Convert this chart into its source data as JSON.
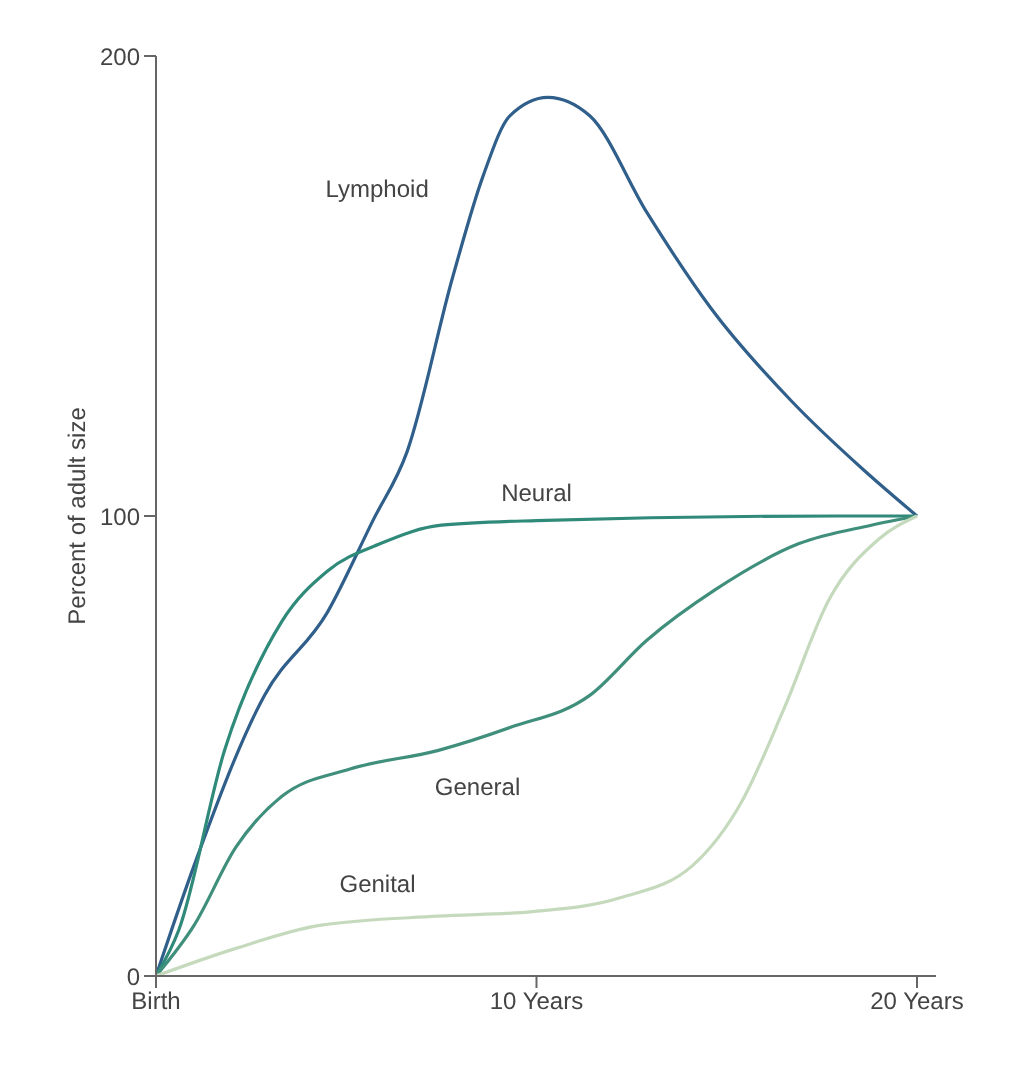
{
  "chart_data": {
    "type": "line",
    "ylabel": "Percent of adult size",
    "xlim": [
      0,
      20.5
    ],
    "ylim": [
      0,
      200
    ],
    "xticks": [
      {
        "value": 0,
        "label": "Birth"
      },
      {
        "value": 10,
        "label": "10 Years"
      },
      {
        "value": 20,
        "label": "20 Years"
      }
    ],
    "yticks": [
      0,
      100,
      200
    ],
    "grid": false,
    "legend": false,
    "marker": "none",
    "line_style": "solid",
    "series": [
      {
        "name": "Lymphoid",
        "color": "#2f5f8a",
        "x": [
          0,
          1.0,
          2.85,
          4.5,
          5.7,
          6.6,
          7.8,
          8.6,
          9.3,
          10.3,
          11.4,
          12.9,
          14.6,
          16.7,
          18.6,
          20
        ],
        "values": [
          0,
          24,
          61,
          79,
          99,
          114,
          152,
          174,
          187,
          191,
          187,
          166,
          145,
          125,
          110,
          100
        ]
      },
      {
        "name": "Neural",
        "color": "#2f8a7a",
        "x": [
          0,
          0.6,
          1.8,
          3.3,
          4.5,
          5.9,
          7.5,
          10,
          17.9,
          20
        ],
        "values": [
          0,
          10,
          49,
          77,
          88,
          94,
          98,
          99,
          100,
          100
        ]
      },
      {
        "name": "General",
        "color": "#3f8f7c",
        "x": [
          0,
          1.0,
          2.1,
          3.3,
          5.1,
          7.4,
          9.3,
          11.4,
          12.9,
          14.7,
          16.9,
          18.8,
          20
        ],
        "values": [
          0,
          11,
          28,
          39,
          45,
          49,
          54,
          61,
          73,
          84,
          94,
          98,
          100
        ]
      },
      {
        "name": "Genital",
        "color": "#c5dabd",
        "x": [
          0,
          2.1,
          4.3,
          7.4,
          9.9,
          12.2,
          14.1,
          15.4,
          16.5,
          17.7,
          19.0,
          20
        ],
        "values": [
          0,
          6,
          11,
          13,
          14,
          17,
          24,
          38,
          58,
          82,
          95,
          100
        ]
      }
    ]
  }
}
